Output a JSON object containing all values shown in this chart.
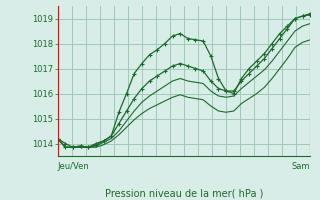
{
  "title": "Pression niveau de la mer( hPa )",
  "xlabel_left": "Jeu/Ven",
  "xlabel_right": "Sam",
  "ylim": [
    1013.5,
    1019.5
  ],
  "yticks": [
    1014,
    1015,
    1016,
    1017,
    1018,
    1019
  ],
  "bg_color": "#d8ede8",
  "grid_color": "#a0c8b8",
  "line_color": "#1a6b2a",
  "marker_color": "#1a6b2a",
  "series": [
    [
      1014.2,
      1014.0,
      1013.85,
      1013.9,
      1013.85,
      1014.0,
      1014.1,
      1014.3,
      1015.25,
      1016.0,
      1016.8,
      1017.2,
      1017.55,
      1017.75,
      1018.0,
      1018.3,
      1018.4,
      1018.2,
      1018.15,
      1018.1,
      1017.5,
      1016.6,
      1016.1,
      1016.0,
      1016.6,
      1017.0,
      1017.3,
      1017.6,
      1018.0,
      1018.4,
      1018.7,
      1019.0,
      1019.1,
      1019.2
    ],
    [
      1014.2,
      1013.85,
      1013.85,
      1013.9,
      1013.85,
      1013.95,
      1014.1,
      1014.3,
      1014.8,
      1015.3,
      1015.8,
      1016.2,
      1016.5,
      1016.7,
      1016.9,
      1017.1,
      1017.2,
      1017.1,
      1017.0,
      1016.9,
      1016.5,
      1016.2,
      1016.1,
      1016.1,
      1016.5,
      1016.8,
      1017.1,
      1017.4,
      1017.8,
      1018.2,
      1018.6,
      1019.0,
      1019.1,
      1019.15
    ],
    [
      1014.2,
      1013.85,
      1013.85,
      1013.85,
      1013.85,
      1013.9,
      1014.05,
      1014.2,
      1014.5,
      1014.9,
      1015.3,
      1015.65,
      1015.9,
      1016.1,
      1016.3,
      1016.5,
      1016.6,
      1016.5,
      1016.45,
      1016.4,
      1016.1,
      1015.9,
      1015.85,
      1015.9,
      1016.2,
      1016.45,
      1016.7,
      1016.95,
      1017.3,
      1017.7,
      1018.1,
      1018.5,
      1018.7,
      1018.8
    ],
    [
      1014.2,
      1013.85,
      1013.85,
      1013.85,
      1013.85,
      1013.85,
      1013.95,
      1014.1,
      1014.35,
      1014.65,
      1014.95,
      1015.2,
      1015.4,
      1015.55,
      1015.7,
      1015.85,
      1015.95,
      1015.85,
      1015.8,
      1015.75,
      1015.5,
      1015.3,
      1015.25,
      1015.3,
      1015.6,
      1015.8,
      1016.0,
      1016.25,
      1016.6,
      1017.0,
      1017.4,
      1017.85,
      1018.05,
      1018.15
    ]
  ],
  "n_points": 34,
  "n_vgrid": 18
}
